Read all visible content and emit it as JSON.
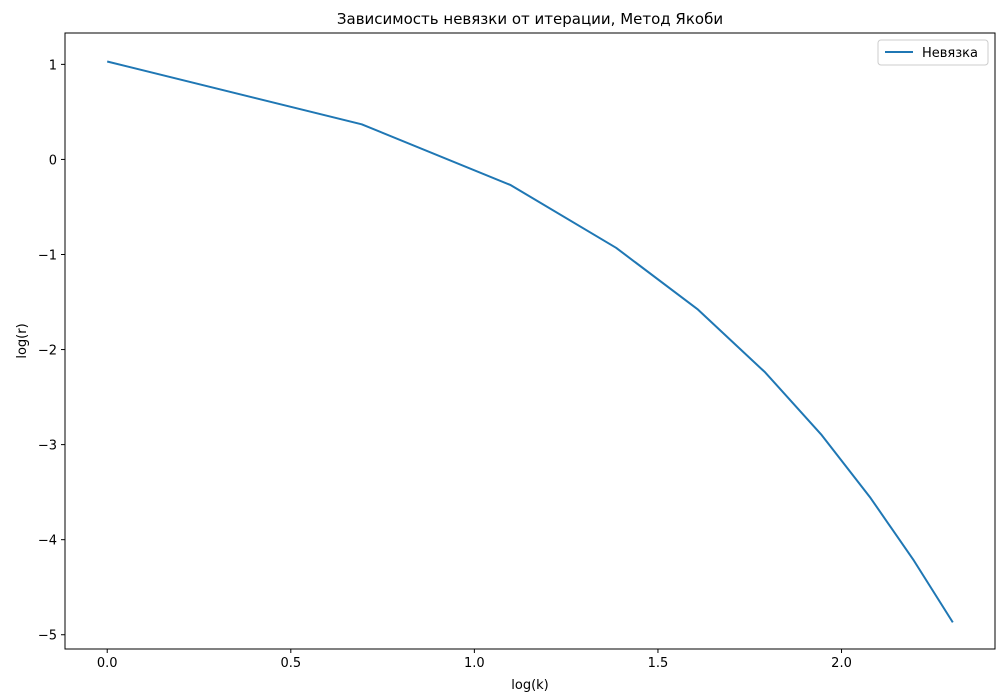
{
  "chart_data": {
    "type": "line",
    "title": "Зависимость невязки от итерации, Метод Якоби",
    "xlabel": "log(k)",
    "ylabel": "log(r)",
    "xlim": [
      -0.115,
      2.418
    ],
    "ylim": [
      -5.15,
      1.33
    ],
    "xticks": [
      0.0,
      0.5,
      1.0,
      1.5,
      2.0
    ],
    "xtick_labels": [
      "0.0",
      "0.5",
      "1.0",
      "1.5",
      "2.0"
    ],
    "yticks": [
      1,
      0,
      -1,
      -2,
      -3,
      -4,
      -5
    ],
    "ytick_labels": [
      "1",
      "0",
      "−1",
      "−2",
      "−3",
      "−4",
      "−5"
    ],
    "grid": false,
    "legend_position": "top-right",
    "series": [
      {
        "name": "Невязка",
        "color": "#1f77b4",
        "x": [
          0.0,
          0.693,
          1.099,
          1.386,
          1.609,
          1.792,
          1.946,
          2.079,
          2.197,
          2.303
        ],
        "y": [
          1.03,
          0.37,
          -0.27,
          -0.93,
          -1.58,
          -2.24,
          -2.9,
          -3.56,
          -4.22,
          -4.87
        ]
      }
    ]
  }
}
